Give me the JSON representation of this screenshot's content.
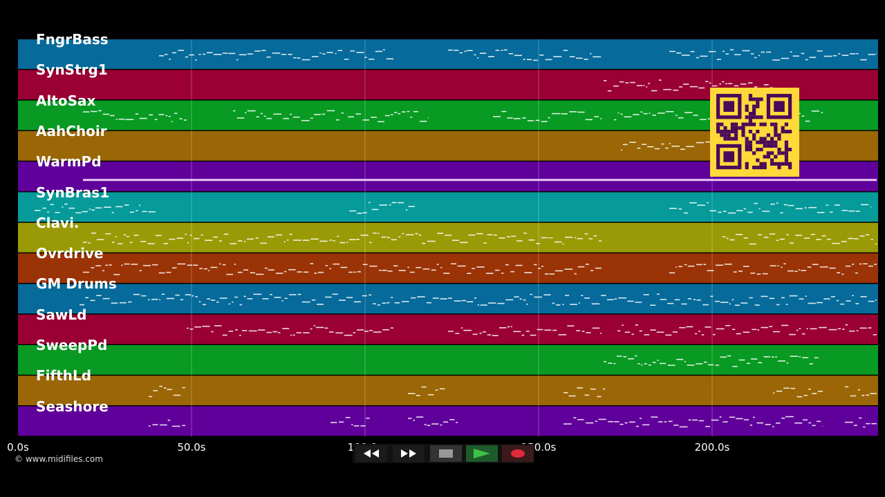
{
  "tracks": [
    {
      "name": "FngrBass",
      "color": "#066a9a"
    },
    {
      "name": "SynStrg1",
      "color": "#9a0033"
    },
    {
      "name": "AltoSax",
      "color": "#089a22"
    },
    {
      "name": "AahChoir",
      "color": "#9a6606"
    },
    {
      "name": "WarmPd",
      "color": "#60009a"
    },
    {
      "name": "SynBras1",
      "color": "#069a9a"
    },
    {
      "name": "Clavi.",
      "color": "#9a9a06"
    },
    {
      "name": "Ovrdrive",
      "color": "#9a3306"
    },
    {
      "name": "GM Drums",
      "color": "#066a9a"
    },
    {
      "name": "SawLd",
      "color": "#9a0033"
    },
    {
      "name": "SweepPd",
      "color": "#089a22"
    },
    {
      "name": "FifthLd",
      "color": "#9a6606"
    },
    {
      "name": "Seashore",
      "color": "#60009a"
    }
  ],
  "timeline": {
    "ticks": [
      {
        "value": 0,
        "label": "0.0s"
      },
      {
        "value": 50,
        "label": "50.0s"
      },
      {
        "value": 100,
        "label": "100.0s"
      },
      {
        "value": 150,
        "label": "150.0s"
      },
      {
        "value": 200,
        "label": "200.0s"
      }
    ]
  },
  "copyright": "© www.midifiles.com",
  "transport": {
    "buttons": [
      {
        "name": "rewind-button",
        "icon": "rewind-icon"
      },
      {
        "name": "fast-forward-button",
        "icon": "fast-forward-icon"
      },
      {
        "name": "stop-button",
        "icon": "stop-icon"
      },
      {
        "name": "play-button",
        "icon": "play-icon",
        "color": "#2a9a3a"
      },
      {
        "name": "record-button",
        "icon": "record-icon",
        "color": "#e02a3a"
      }
    ]
  }
}
